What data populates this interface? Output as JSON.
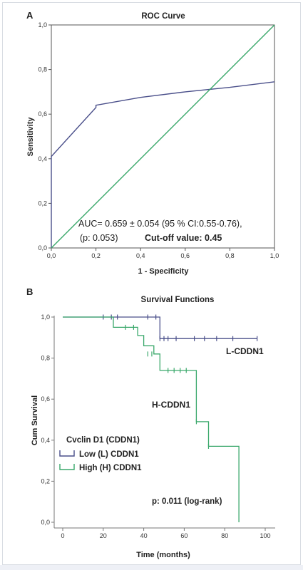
{
  "chart_data": [
    {
      "type": "line",
      "panel_label": "A",
      "title": "ROC Curve",
      "xlabel": "1 - Specificity",
      "ylabel": "Sensitivity",
      "xlim": [
        0.0,
        1.0
      ],
      "ylim": [
        0.0,
        1.0
      ],
      "x_ticks": [
        "0,0",
        "0,2",
        "0,4",
        "0,6",
        "0,8",
        "1,0"
      ],
      "y_ticks": [
        "0,0",
        "0,2",
        "0,4",
        "0,6",
        "0,8",
        "1,0"
      ],
      "grid": false,
      "series": [
        {
          "color": "#4a4f8a",
          "points": [
            [
              0.0,
              0.0
            ],
            [
              0.0,
              0.41
            ],
            [
              0.2,
              0.63
            ],
            [
              0.2,
              0.64
            ],
            [
              0.4,
              0.675
            ],
            [
              0.6,
              0.7
            ],
            [
              0.8,
              0.72
            ],
            [
              1.0,
              0.745
            ]
          ]
        },
        {
          "color": "#3aa86b",
          "points": [
            [
              0.0,
              0.0
            ],
            [
              1.0,
              1.0
            ]
          ]
        }
      ],
      "annotations": {
        "auc_line": "AUC= 0.659 ± 0.054  (95 % CI:0.55-0.76),",
        "p_value": "(p: 0.053)",
        "cutoff_label": "Cut-off value: 0.45"
      }
    },
    {
      "type": "line",
      "panel_label": "B",
      "title": "Survival Functions",
      "xlabel": "Time (months)",
      "ylabel": "Cum Survival",
      "xlim": [
        0,
        100
      ],
      "ylim": [
        0.0,
        1.0
      ],
      "x_ticks": [
        "0",
        "20",
        "40",
        "60",
        "80",
        "100"
      ],
      "y_ticks": [
        "0,0",
        "0,2",
        "0,4",
        "0,6",
        "0,8",
        "1,0"
      ],
      "grid": false,
      "legend": {
        "position": "left-middle",
        "title": "Cvclin D1 (CDDN1)",
        "items": [
          {
            "label": "Low (L) CDDN1",
            "color": "#4a4f8a"
          },
          {
            "label": "High (H) CDDN1",
            "color": "#3aa86b"
          }
        ]
      },
      "series": [
        {
          "name": "Low (L) CDDN1",
          "color": "#4a4f8a",
          "steps": [
            [
              0,
              1.0
            ],
            [
              48,
              0.895
            ],
            [
              96,
              0.895
            ]
          ],
          "censored": [
            [
              20,
              1.0
            ],
            [
              24,
              1.0
            ],
            [
              27,
              1.0
            ],
            [
              42,
              1.0
            ],
            [
              46,
              1.0
            ],
            [
              48,
              0.895
            ],
            [
              50,
              0.895
            ],
            [
              52,
              0.895
            ],
            [
              56,
              0.895
            ],
            [
              65,
              0.895
            ],
            [
              70,
              0.895
            ],
            [
              76,
              0.895
            ],
            [
              84,
              0.895
            ],
            [
              96,
              0.895
            ]
          ]
        },
        {
          "name": "High (H) CDDN1",
          "color": "#3aa86b",
          "steps": [
            [
              0,
              1.0
            ],
            [
              25,
              0.95
            ],
            [
              37,
              0.91
            ],
            [
              40,
              0.86
            ],
            [
              45,
              0.82
            ],
            [
              48,
              0.74
            ],
            [
              66,
              0.49
            ],
            [
              72,
              0.37
            ],
            [
              87,
              0.0
            ]
          ],
          "censored": [
            [
              31,
              0.95
            ],
            [
              35,
              0.95
            ],
            [
              42,
              0.82
            ],
            [
              44,
              0.82
            ],
            [
              52,
              0.74
            ],
            [
              55,
              0.74
            ],
            [
              58,
              0.74
            ],
            [
              61,
              0.74
            ],
            [
              66,
              0.49
            ],
            [
              72,
              0.37
            ]
          ]
        }
      ],
      "annotations": {
        "low_label": "L-CDDN1",
        "high_label": "H-CDDN1",
        "p_value": "p: 0.011 (log-rank)"
      }
    }
  ]
}
